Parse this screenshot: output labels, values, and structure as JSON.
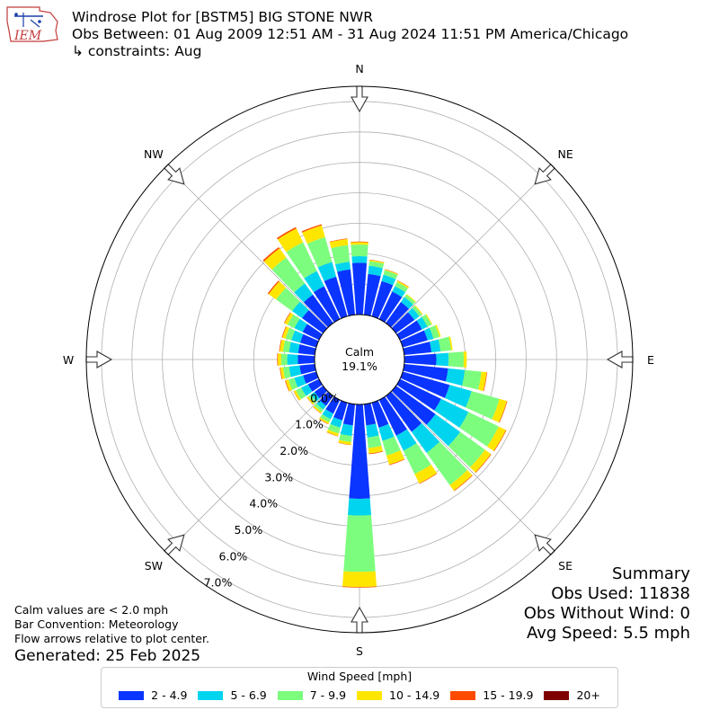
{
  "header": {
    "title": "Windrose Plot for [BSTM5] BIG STONE NWR",
    "obs_between": "Obs Between: 01 Aug 2009 12:51 AM - 31 Aug 2024 11:51 PM America/Chicago",
    "constraints": "↳ constraints: Aug",
    "logo_text": "IEM"
  },
  "notes": {
    "calm_note": "Calm values are < 2.0 mph",
    "bar_convention": "Bar Convention: Meteorology",
    "flow_note": "Flow arrows relative to plot center.",
    "generated": "Generated: 25 Feb 2025"
  },
  "summary": {
    "title": "Summary",
    "obs_used": "Obs Used: 11838",
    "obs_without_wind": "Obs Without Wind: 0",
    "avg_speed": "Avg Speed: 5.5 mph"
  },
  "legend": {
    "title": "Wind Speed [mph]",
    "items": [
      {
        "label": "2 - 4.9",
        "color": "#0a34ff"
      },
      {
        "label": "5 - 6.9",
        "color": "#00d4ee"
      },
      {
        "label": "7 - 9.9",
        "color": "#7cfd7e"
      },
      {
        "label": "10 - 14.9",
        "color": "#ffe600"
      },
      {
        "label": "15 - 19.9",
        "color": "#ff4a00"
      },
      {
        "label": "20+",
        "color": "#7f0000"
      }
    ]
  },
  "chart_data": {
    "type": "windrose",
    "calm_label": "Calm",
    "calm_value": "19.1%",
    "cardinal_labels": [
      "N",
      "NE",
      "E",
      "SE",
      "S",
      "SW",
      "W",
      "NW"
    ],
    "radial_ticks": [
      "0.0%",
      "1.0%",
      "2.0%",
      "3.0%",
      "4.0%",
      "5.0%",
      "6.0%",
      "7.0%"
    ],
    "radial_max": 7.5,
    "speed_bins": [
      "2 - 4.9",
      "5 - 6.9",
      "7 - 9.9",
      "10 - 14.9",
      "15 - 19.9",
      "20+"
    ],
    "colors": [
      "#0a34ff",
      "#00d4ee",
      "#7cfd7e",
      "#ffe600",
      "#ff4a00",
      "#7f0000"
    ],
    "directions": [
      0,
      10,
      20,
      30,
      40,
      50,
      60,
      70,
      80,
      90,
      100,
      110,
      120,
      130,
      140,
      150,
      160,
      170,
      180,
      190,
      200,
      210,
      220,
      230,
      240,
      250,
      260,
      270,
      280,
      290,
      300,
      310,
      320,
      330,
      340,
      350
    ],
    "cumulative": [
      [
        1.7,
        1.92,
        2.3,
        2.38,
        2.4,
        2.4
      ],
      [
        1.35,
        1.62,
        1.77,
        1.81,
        1.82,
        1.82
      ],
      [
        1.2,
        1.42,
        1.57,
        1.6,
        1.61,
        1.61
      ],
      [
        1.0,
        1.2,
        1.35,
        1.4,
        1.41,
        1.41
      ],
      [
        0.85,
        1.05,
        1.15,
        1.18,
        1.18,
        1.18
      ],
      [
        0.75,
        0.95,
        1.05,
        1.08,
        1.08,
        1.08
      ],
      [
        0.8,
        1.0,
        1.15,
        1.18,
        1.18,
        1.18
      ],
      [
        0.85,
        1.05,
        1.25,
        1.3,
        1.3,
        1.3
      ],
      [
        0.9,
        1.2,
        1.55,
        1.6,
        1.6,
        1.6
      ],
      [
        1.05,
        1.45,
        1.95,
        2.05,
        2.05,
        2.05
      ],
      [
        1.45,
        2.0,
        2.55,
        2.72,
        2.74,
        2.74
      ],
      [
        1.6,
        2.35,
        3.3,
        3.55,
        3.57,
        3.57
      ],
      [
        1.5,
        2.5,
        3.6,
        3.86,
        3.88,
        3.88
      ],
      [
        1.6,
        2.6,
        3.6,
        3.84,
        3.86,
        3.86
      ],
      [
        1.45,
        2.3,
        3.6,
        3.83,
        3.85,
        3.85
      ],
      [
        1.3,
        1.85,
        2.7,
        3.04,
        3.06,
        3.06
      ],
      [
        0.85,
        1.3,
        1.8,
        2.11,
        2.13,
        2.13
      ],
      [
        0.7,
        1.1,
        1.45,
        1.63,
        1.65,
        1.65
      ],
      [
        3.1,
        3.65,
        5.5,
        6.0,
        6.02,
        6.02
      ],
      [
        0.7,
        1.05,
        1.25,
        1.34,
        1.35,
        1.35
      ],
      [
        0.6,
        0.85,
        1.05,
        1.14,
        1.15,
        1.15
      ],
      [
        0.5,
        0.7,
        0.82,
        0.88,
        0.89,
        0.89
      ],
      [
        0.4,
        0.55,
        0.65,
        0.7,
        0.71,
        0.71
      ],
      [
        0.35,
        0.5,
        0.6,
        0.65,
        0.66,
        0.66
      ],
      [
        0.4,
        0.65,
        0.85,
        0.92,
        0.93,
        0.93
      ],
      [
        0.45,
        0.75,
        0.95,
        1.05,
        1.07,
        1.07
      ],
      [
        0.5,
        0.85,
        1.05,
        1.14,
        1.16,
        1.16
      ],
      [
        0.55,
        0.9,
        1.1,
        1.21,
        1.23,
        1.23
      ],
      [
        0.55,
        0.85,
        1.05,
        1.16,
        1.18,
        1.18
      ],
      [
        0.55,
        0.85,
        1.05,
        1.16,
        1.18,
        1.18
      ],
      [
        0.6,
        0.9,
        1.15,
        1.26,
        1.28,
        1.28
      ],
      [
        0.85,
        1.25,
        1.9,
        2.2,
        2.24,
        2.24
      ],
      [
        1.15,
        1.6,
        2.65,
        3.02,
        3.07,
        3.07
      ],
      [
        1.2,
        1.75,
        2.8,
        3.3,
        3.35,
        3.35
      ],
      [
        1.35,
        1.85,
        2.7,
        3.1,
        3.14,
        3.14
      ],
      [
        1.5,
        1.75,
        2.3,
        2.5,
        2.52,
        2.52
      ]
    ]
  }
}
